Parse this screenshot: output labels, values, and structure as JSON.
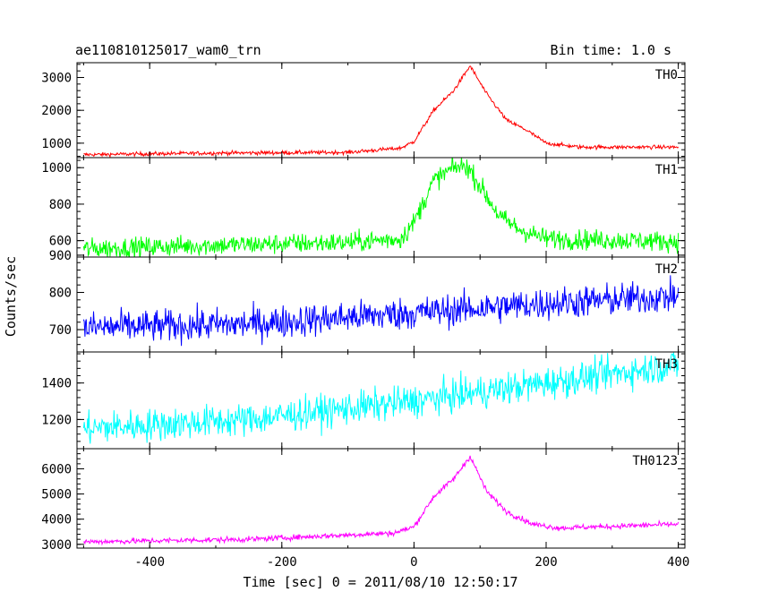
{
  "title": "ae110810125017_wam0_trn",
  "bin_time": "Bin time: 1.0 s",
  "ylabel": "Counts/sec",
  "xlabel": "Time [sec] 0 = 2011/08/10 12:50:17",
  "chart_data": {
    "type": "line",
    "xlim": [
      -510,
      410
    ],
    "xticks": [
      -400,
      -200,
      0,
      200,
      400
    ],
    "panels": [
      {
        "name": "TH0",
        "color": "#ff0000",
        "ylim": [
          560,
          3450
        ],
        "yticks": [
          1000,
          2000,
          3000
        ],
        "noise": 30,
        "profile": [
          [
            -500,
            650
          ],
          [
            -300,
            700
          ],
          [
            -100,
            720
          ],
          [
            -20,
            850
          ],
          [
            0,
            1050
          ],
          [
            30,
            2000
          ],
          [
            60,
            2600
          ],
          [
            85,
            3350
          ],
          [
            110,
            2500
          ],
          [
            140,
            1700
          ],
          [
            170,
            1400
          ],
          [
            200,
            1000
          ],
          [
            250,
            880
          ],
          [
            400,
            880
          ]
        ]
      },
      {
        "name": "TH1",
        "color": "#00ff00",
        "ylim": [
          510,
          1055
        ],
        "yticks": [
          600,
          800,
          1000
        ],
        "noise": 28,
        "profile": [
          [
            -500,
            555
          ],
          [
            -300,
            575
          ],
          [
            -100,
            590
          ],
          [
            -20,
            610
          ],
          [
            0,
            700
          ],
          [
            30,
            930
          ],
          [
            60,
            1000
          ],
          [
            80,
            1010
          ],
          [
            100,
            900
          ],
          [
            130,
            730
          ],
          [
            160,
            660
          ],
          [
            200,
            610
          ],
          [
            400,
            595
          ]
        ]
      },
      {
        "name": "TH2",
        "color": "#0000ff",
        "ylim": [
          640,
          895
        ],
        "yticks": [
          700,
          800,
          900
        ],
        "noise": 22,
        "profile": [
          [
            -500,
            705
          ],
          [
            -250,
            715
          ],
          [
            0,
            745
          ],
          [
            200,
            770
          ],
          [
            400,
            790
          ]
        ]
      },
      {
        "name": "TH3",
        "color": "#00ffff",
        "ylim": [
          1040,
          1570
        ],
        "yticks": [
          1200,
          1400
        ],
        "noise": 45,
        "profile": [
          [
            -500,
            1150
          ],
          [
            -250,
            1200
          ],
          [
            0,
            1300
          ],
          [
            200,
            1400
          ],
          [
            400,
            1500
          ]
        ]
      },
      {
        "name": "TH0123",
        "color": "#ff00ff",
        "ylim": [
          2850,
          6800
        ],
        "yticks": [
          3000,
          4000,
          5000,
          6000
        ],
        "noise": 55,
        "profile": [
          [
            -500,
            3100
          ],
          [
            -250,
            3200
          ],
          [
            -30,
            3450
          ],
          [
            0,
            3700
          ],
          [
            30,
            4900
          ],
          [
            60,
            5600
          ],
          [
            85,
            6500
          ],
          [
            110,
            5100
          ],
          [
            140,
            4300
          ],
          [
            180,
            3800
          ],
          [
            220,
            3650
          ],
          [
            400,
            3800
          ]
        ]
      }
    ]
  }
}
